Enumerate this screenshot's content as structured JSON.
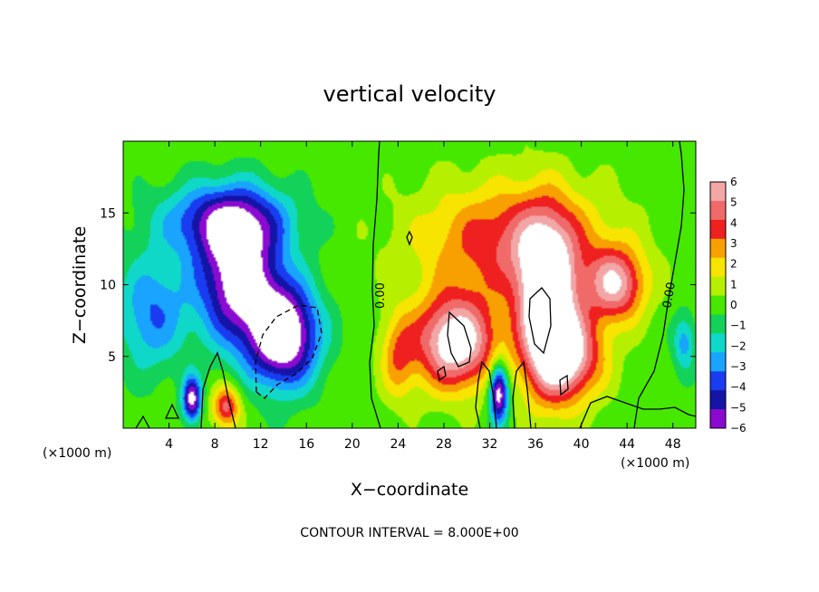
{
  "chart_data": {
    "type": "heatmap",
    "title": "vertical velocity",
    "xlabel": "X−coordinate",
    "ylabel": "Z−coordinate",
    "x_unit": "(×1000 m)",
    "z_unit": "(×1000 m)",
    "xlim": [
      0,
      50
    ],
    "ylim": [
      0,
      20
    ],
    "x_ticks": [
      4,
      8,
      12,
      16,
      20,
      24,
      28,
      32,
      36,
      40,
      44,
      48
    ],
    "y_ticks": [
      5,
      10,
      15
    ],
    "colorbar": {
      "levels": [
        6,
        5,
        4,
        3,
        2,
        1,
        0,
        "−1",
        "−2",
        "−3",
        "−4",
        "−5",
        "−6"
      ],
      "colors": [
        "#f2a6a6",
        "#f06a6a",
        "#ef2020",
        "#f7a000",
        "#f7e400",
        "#b6f000",
        "#46e800",
        "#13d25a",
        "#10d8c8",
        "#18a4ff",
        "#1a3cf0",
        "#1414a6",
        "#8a0ad0"
      ]
    },
    "contour_labels": [
      "0.00",
      "0.00"
    ],
    "footnote": "CONTOUR INTERVAL = 8.000E+00",
    "features": [
      {
        "kind": "downdraft",
        "x": 10,
        "z": 10.5,
        "sx": 3.5,
        "sz": 4.5,
        "w": -7.5
      },
      {
        "kind": "downdraft",
        "x": 9,
        "z": 14.5,
        "sx": 5.5,
        "sz": 2.5,
        "w": -5
      },
      {
        "kind": "downdraft",
        "x": 14,
        "z": 6.5,
        "sx": 3,
        "sz": 3.5,
        "w": -8.5
      },
      {
        "kind": "downdraft",
        "x": 2.5,
        "z": 8,
        "sx": 3,
        "sz": 4,
        "w": -3.5
      },
      {
        "kind": "downdraft",
        "x": 6,
        "z": 2,
        "sx": 0.8,
        "sz": 1.5,
        "w": -7
      },
      {
        "kind": "downdraft",
        "x": 32.8,
        "z": 2.5,
        "sx": 0.8,
        "sz": 2,
        "w": -8
      },
      {
        "kind": "downdraft",
        "x": 49,
        "z": 6,
        "sx": 1,
        "sz": 2,
        "w": -3
      },
      {
        "kind": "updraft",
        "x": 29,
        "z": 6,
        "sx": 3.5,
        "sz": 3.2,
        "w": 8
      },
      {
        "kind": "updraft",
        "x": 37,
        "z": 8.5,
        "sx": 2.5,
        "sz": 5.5,
        "w": 9
      },
      {
        "kind": "updraft",
        "x": 34,
        "z": 13,
        "sx": 8,
        "sz": 4,
        "w": 4.5
      },
      {
        "kind": "updraft",
        "x": 43,
        "z": 10,
        "sx": 2.5,
        "sz": 2.5,
        "w": 6
      },
      {
        "kind": "updraft",
        "x": 39,
        "z": 5,
        "sx": 3,
        "sz": 3,
        "w": 6
      },
      {
        "kind": "updraft",
        "x": 9,
        "z": 1.5,
        "sx": 1.2,
        "sz": 1.5,
        "w": 5
      },
      {
        "kind": "updraft",
        "x": 24,
        "z": 5,
        "sx": 1.5,
        "sz": 3,
        "w": 3
      }
    ]
  }
}
